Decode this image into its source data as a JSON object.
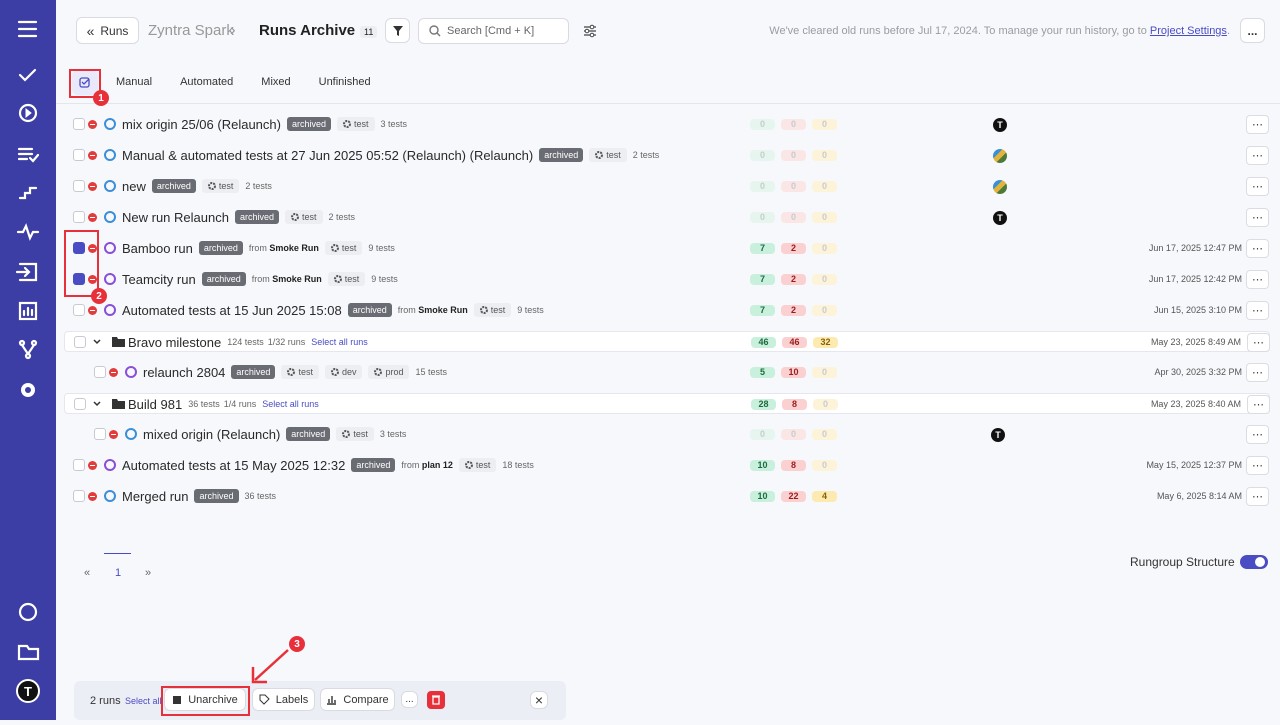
{
  "sidebar": {
    "avatar": "T"
  },
  "header": {
    "back": "Runs",
    "project": "Zyntra Spark",
    "separator": "›",
    "title": "Runs Archive",
    "count": "11",
    "search_placeholder": "Search [Cmd + K]",
    "notice": "We've cleared old runs before Jul 17, 2024. To manage your run history, go to",
    "notice_link": "Project Settings",
    "notice_end": ".",
    "more": "..."
  },
  "tabs": [
    "Manual",
    "Automated",
    "Mixed",
    "Unfinished"
  ],
  "rows": [
    {
      "name": "mix origin 25/06 (Relaunch)",
      "badge": "archived",
      "tags": [
        "test"
      ],
      "tests": "3 tests",
      "counts": [
        0,
        0,
        0
      ],
      "avatar": "T",
      "icon": "auto"
    },
    {
      "name": "Manual & automated tests at 27 Jun 2025 05:52 (Relaunch) (Relaunch)",
      "badge": "archived",
      "tags": [
        "test"
      ],
      "tests": "2 tests",
      "counts": [
        0,
        0,
        0
      ],
      "avatar_image": true,
      "icon": "auto"
    },
    {
      "name": "new",
      "badge": "archived",
      "tags": [
        "test"
      ],
      "tests": "2 tests",
      "counts": [
        0,
        0,
        0
      ],
      "avatar_image": true,
      "icon": "auto"
    },
    {
      "name": "New run Relaunch",
      "badge": "archived",
      "tags": [
        "test"
      ],
      "tests": "2 tests",
      "counts": [
        0,
        0,
        0
      ],
      "avatar": "T",
      "icon": "auto"
    },
    {
      "name": "Bamboo run",
      "badge": "archived",
      "source": {
        "label": "from",
        "name": "Smoke Run"
      },
      "tags": [
        "test"
      ],
      "tests": "9 tests",
      "counts": [
        7,
        2,
        0
      ],
      "date": "Jun 17, 2025 12:47 PM",
      "checked": true,
      "icon": "ci"
    },
    {
      "name": "Teamcity run",
      "badge": "archived",
      "source": {
        "label": "from",
        "name": "Smoke Run"
      },
      "tags": [
        "test"
      ],
      "tests": "9 tests",
      "counts": [
        7,
        2,
        0
      ],
      "date": "Jun 17, 2025 12:42 PM",
      "checked": true,
      "icon": "ci"
    },
    {
      "name": "Automated tests at 15 Jun 2025 15:08",
      "badge": "archived",
      "source": {
        "label": "from",
        "name": "Smoke Run"
      },
      "tags": [
        "test"
      ],
      "tests": "9 tests",
      "counts": [
        7,
        2,
        0
      ],
      "date": "Jun 15, 2025 3:10 PM",
      "icon": "ci"
    },
    {
      "group": true,
      "name": "Bravo milestone",
      "tests": "124 tests",
      "runs": "1/32 runs",
      "select": "Select all runs",
      "counts": [
        46,
        46,
        32
      ],
      "date": "May 23, 2025 8:49 AM"
    },
    {
      "child": true,
      "name": "relaunch 2804",
      "badge": "archived",
      "tags": [
        "test",
        "dev",
        "prod"
      ],
      "tests": "15 tests",
      "counts": [
        5,
        10,
        0
      ],
      "date": "Apr 30, 2025 3:32 PM",
      "icon": "ci"
    },
    {
      "group": true,
      "name": "Build 981",
      "tests": "36 tests",
      "runs": "1/4 runs",
      "select": "Select all runs",
      "counts": [
        28,
        8,
        0
      ],
      "date": "May 23, 2025 8:40 AM"
    },
    {
      "child": true,
      "name": "mixed origin (Relaunch)",
      "badge": "archived",
      "tags": [
        "test"
      ],
      "tests": "3 tests",
      "counts": [
        0,
        0,
        0
      ],
      "avatar": "T",
      "icon": "auto"
    },
    {
      "name": "Automated tests at 15 May 2025 12:32",
      "badge": "archived",
      "source": {
        "label": "from",
        "name": "plan 12"
      },
      "tags": [
        "test"
      ],
      "tests": "18 tests",
      "counts": [
        10,
        8,
        0
      ],
      "date": "May 15, 2025 12:37 PM",
      "icon": "ci"
    },
    {
      "name": "Merged run",
      "badge": "archived",
      "tests": "36 tests",
      "counts": [
        10,
        22,
        4
      ],
      "date": "May 6, 2025 8:14 AM",
      "icon": "auto"
    }
  ],
  "pagination": {
    "prev": "«",
    "page": "1",
    "next": "»"
  },
  "rungroup_label": "Rungroup Structure",
  "bulk": {
    "count": "2 runs",
    "select_all": "Select all",
    "unarchive": "Unarchive",
    "labels": "Labels",
    "compare": "Compare",
    "more": "...",
    "close": "×"
  },
  "annotations": [
    "1",
    "2",
    "3"
  ]
}
